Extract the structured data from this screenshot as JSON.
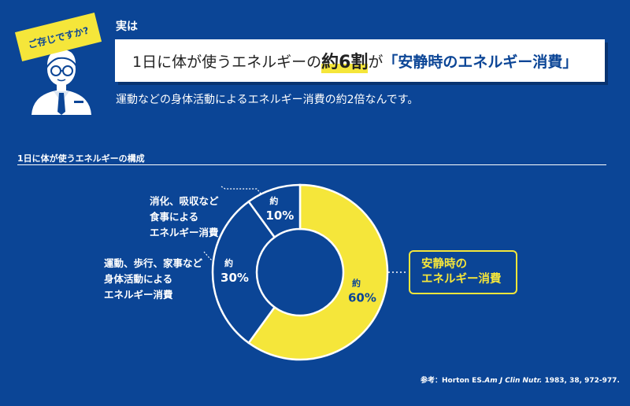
{
  "badge": {
    "text": "ご存じですか?"
  },
  "intro": {
    "label": "実は"
  },
  "headline": {
    "part1": "1日に体が使うエネルギーの",
    "highlight": "約6割",
    "part2": "が",
    "accent": "「安静時のエネルギー消費」"
  },
  "subtext": "運動などの身体活動によるエネルギー消費の約2倍なんです。",
  "section_title": "1日に体が使うエネルギーの構成",
  "callout": {
    "line1": "安静時の",
    "line2": "エネルギー消費"
  },
  "reference": {
    "prefix": "参考：Horton ES.",
    "journal": "Am J Clin Nutr.",
    "suffix": " 1983, 38, 972-977."
  },
  "colors": {
    "background": "#0b4596",
    "accent": "#f5e63a",
    "text": "#ffffff"
  },
  "icons": [
    "avatar-illustration"
  ],
  "chart_data": {
    "type": "pie",
    "variant": "donut",
    "title": "1日に体が使うエネルギーの構成",
    "slices": [
      {
        "label_lines": [
          "安静時の",
          "エネルギー消費"
        ],
        "value": 60,
        "prefix": "約",
        "display": "60%",
        "color": "#f5e63a",
        "text_color": "#0b4596"
      },
      {
        "label_lines": [
          "運動、歩行、家事など",
          "身体活動による",
          "エネルギー消費"
        ],
        "value": 30,
        "prefix": "約",
        "display": "30%",
        "color": "#0b4596",
        "text_color": "#ffffff"
      },
      {
        "label_lines": [
          "消化、吸収など",
          "食事による",
          "エネルギー消費"
        ],
        "value": 10,
        "prefix": "約",
        "display": "10%",
        "color": "#0b4596",
        "text_color": "#ffffff"
      }
    ]
  }
}
